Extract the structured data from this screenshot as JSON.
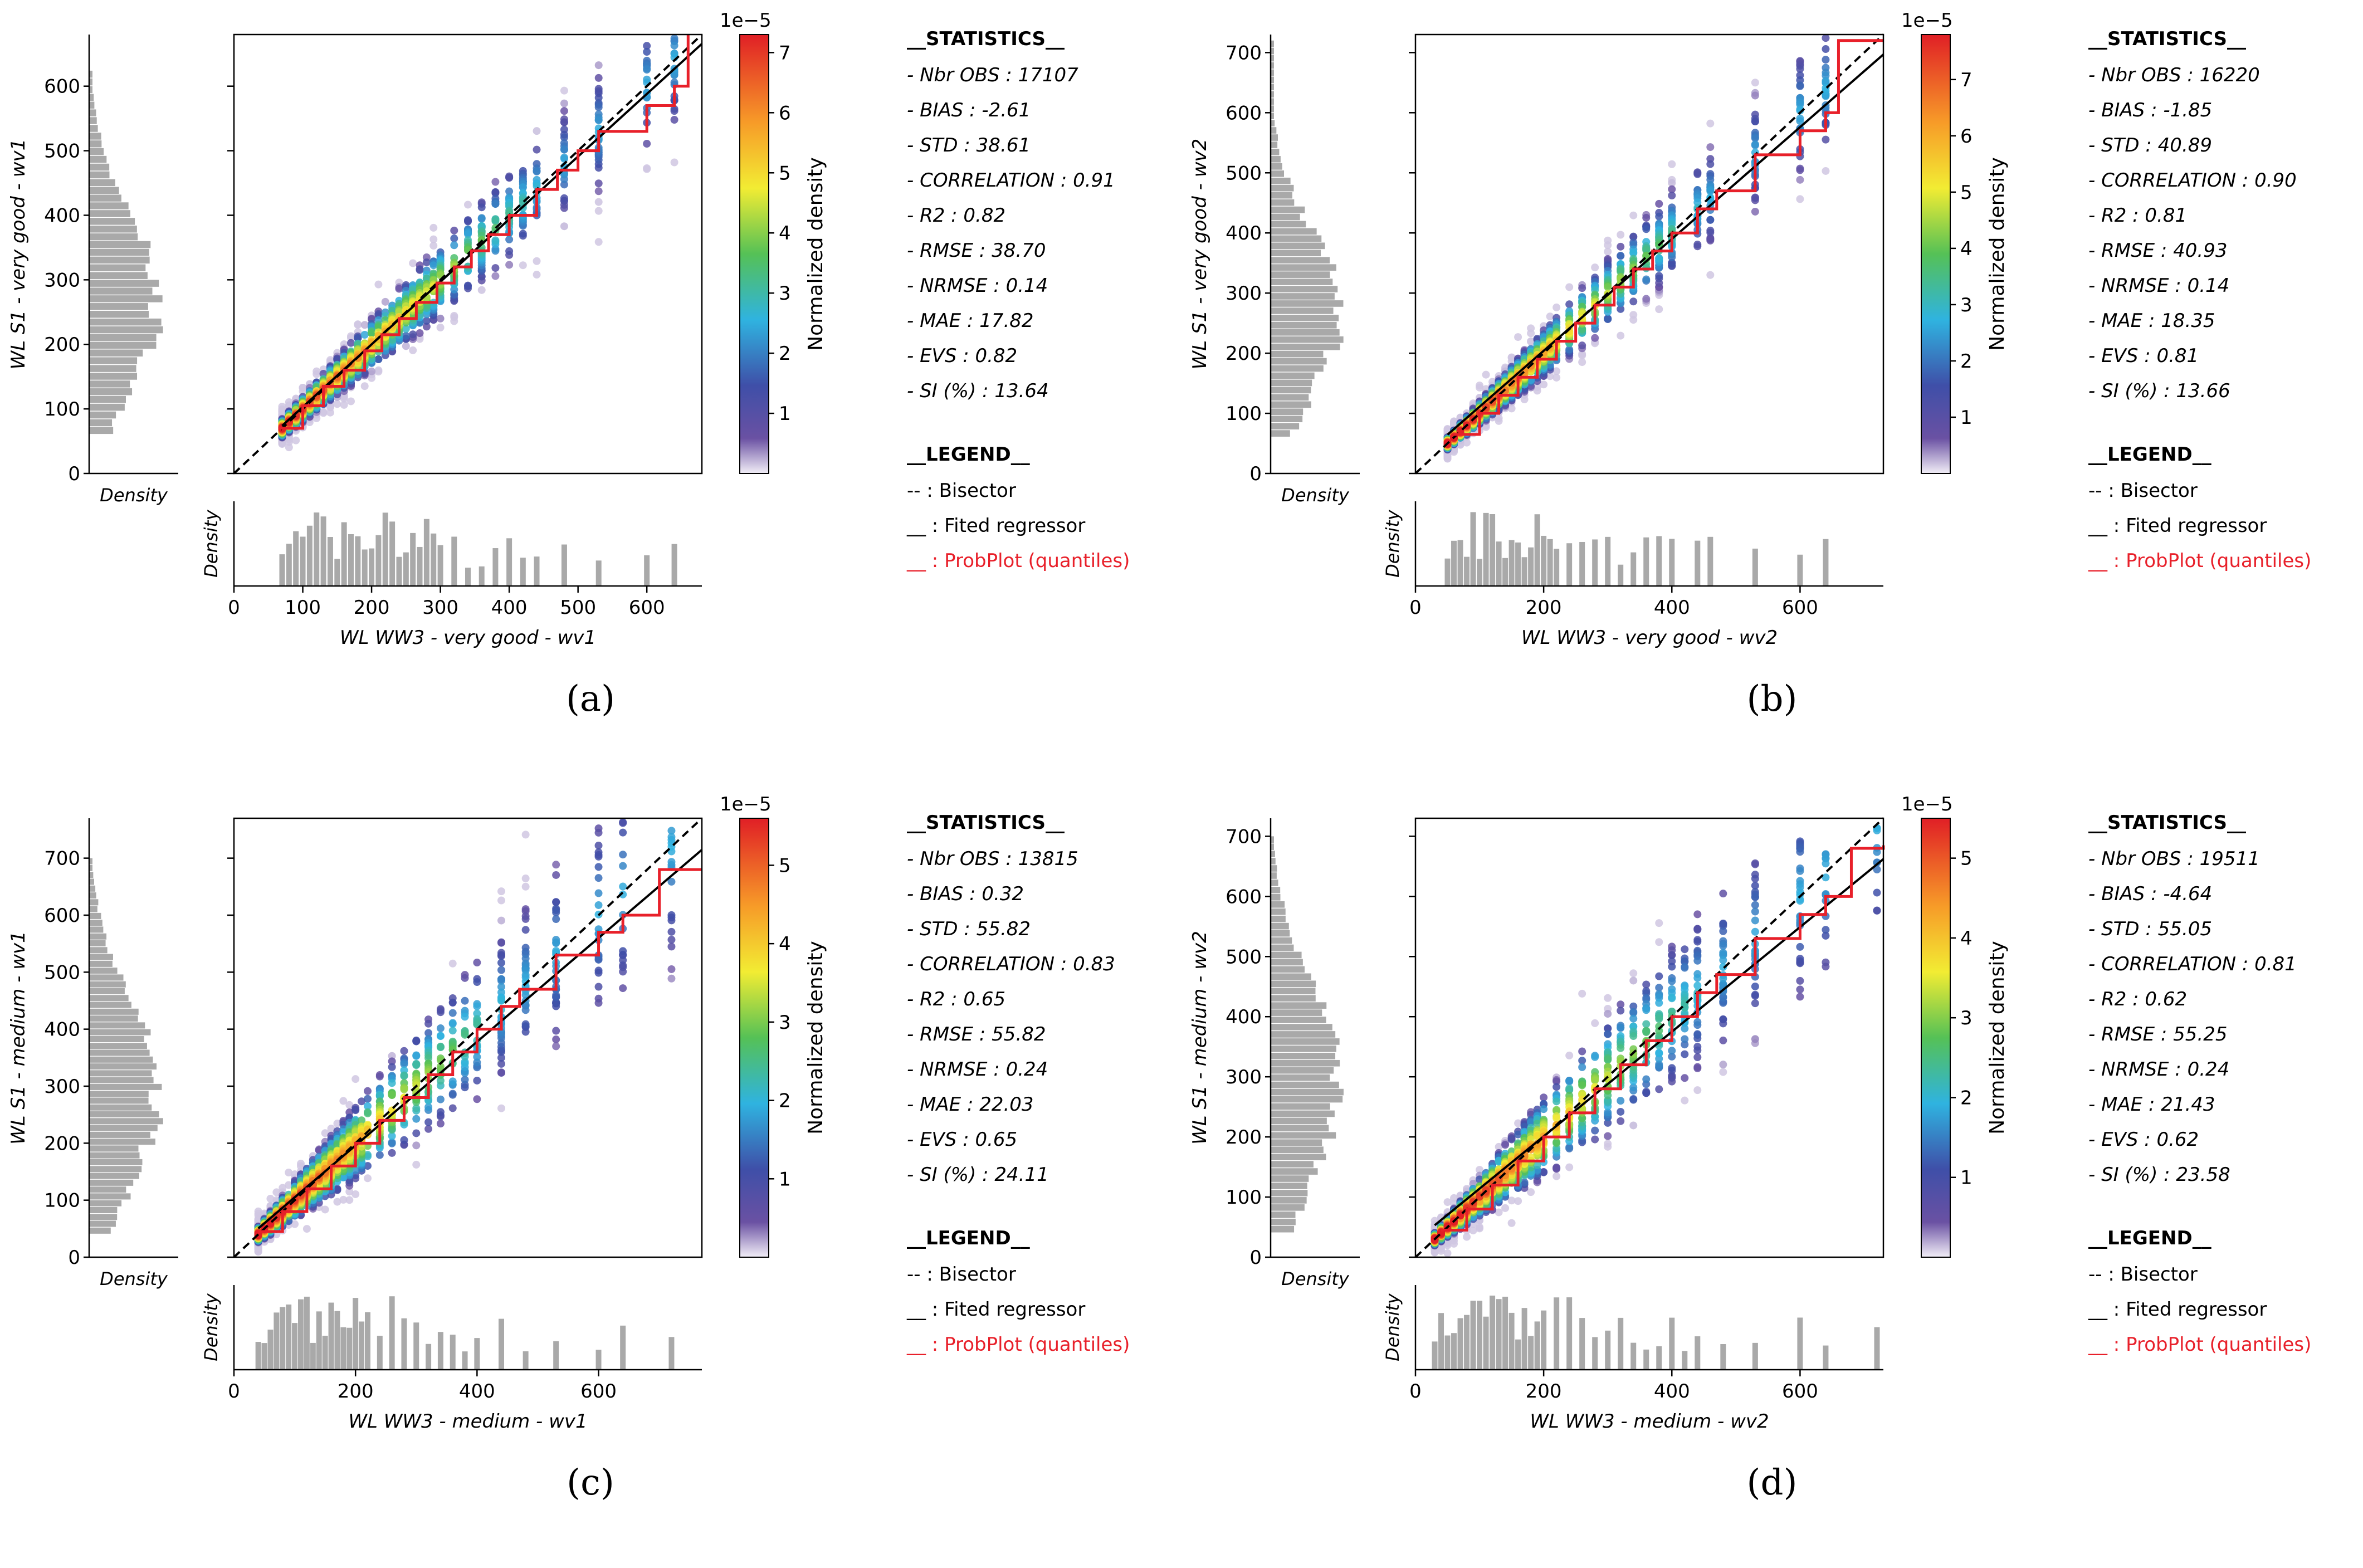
{
  "panels": [
    {
      "label": "(a)",
      "xlabel": "WL WW3 - very good - wv1",
      "ylabel": "WL S1 - very good - wv1",
      "colorbar_label": "Normalized density",
      "colorbar_exponent": "1e−5",
      "stats_title": "__STATISTICS__",
      "stats": [
        "- Nbr OBS : 17107",
        "- BIAS : -2.61",
        "- STD  : 38.61",
        "- CORRELATION : 0.91",
        "- R2 : 0.82",
        "- RMSE  : 38.70",
        "- NRMSE : 0.14",
        "- MAE : 17.82",
        "- EVS : 0.82",
        "- SI (%) : 13.64"
      ],
      "legend_title": "__LEGEND__",
      "legend": [
        "-- : Bisector",
        "__ : Fited regressor",
        "__ : ProbPlot (quantiles)"
      ],
      "density_label": "Density"
    },
    {
      "label": "(b)",
      "xlabel": "WL WW3 - very good - wv2",
      "ylabel": "WL S1 - very good - wv2",
      "colorbar_label": "Normalized density",
      "colorbar_exponent": "1e−5",
      "stats_title": "__STATISTICS__",
      "stats": [
        "- Nbr OBS : 16220",
        "- BIAS : -1.85",
        "- STD  : 40.89",
        "- CORRELATION : 0.90",
        "- R2 : 0.81",
        "- RMSE  : 40.93",
        "- NRMSE : 0.14",
        "- MAE : 18.35",
        "- EVS : 0.81",
        "- SI (%) : 13.66"
      ],
      "legend_title": "__LEGEND__",
      "legend": [
        "-- : Bisector",
        "__ : Fited regressor",
        "__ : ProbPlot (quantiles)"
      ],
      "density_label": "Density"
    },
    {
      "label": "(c)",
      "xlabel": "WL WW3 - medium - wv1",
      "ylabel": "WL S1 - medium - wv1",
      "colorbar_label": "Normalized density",
      "colorbar_exponent": "1e−5",
      "stats_title": "__STATISTICS__",
      "stats": [
        "- Nbr OBS : 13815",
        "- BIAS : 0.32",
        "- STD  : 55.82",
        "- CORRELATION : 0.83",
        "- R2 : 0.65",
        "- RMSE  : 55.82",
        "- NRMSE : 0.24",
        "- MAE : 22.03",
        "- EVS : 0.65",
        "- SI (%) : 24.11"
      ],
      "legend_title": "__LEGEND__",
      "legend": [
        "-- : Bisector",
        "__ : Fited regressor",
        "__ : ProbPlot (quantiles)"
      ],
      "density_label": "Density"
    },
    {
      "label": "(d)",
      "xlabel": "WL WW3 - medium - wv2",
      "ylabel": "WL S1 - medium - wv2",
      "colorbar_label": "Normalized density",
      "colorbar_exponent": "1e−5",
      "stats_title": "__STATISTICS__",
      "stats": [
        "- Nbr OBS : 19511",
        "- BIAS : -4.64",
        "- STD  : 55.05",
        "- CORRELATION : 0.81",
        "- R2 : 0.62",
        "- RMSE  : 55.25",
        "- NRMSE : 0.24",
        "- MAE : 21.43",
        "- EVS : 0.62",
        "- SI (%) : 23.58"
      ],
      "legend_title": "__LEGEND__",
      "legend": [
        "-- : Bisector",
        "__ : Fited regressor",
        "__ : ProbPlot (quantiles)"
      ],
      "density_label": "Density"
    }
  ],
  "chart_data": [
    {
      "type": "scatter",
      "title": "(a)",
      "xlabel": "WL WW3 - very good - wv1",
      "ylabel": "WL S1 - very good - wv1",
      "xlim": [
        0,
        680
      ],
      "ylim": [
        0,
        680
      ],
      "xticks": [
        0,
        100,
        200,
        300,
        400,
        500,
        600
      ],
      "yticks": [
        0,
        100,
        200,
        300,
        400,
        500,
        600
      ],
      "colorbar": {
        "label": "Normalized density",
        "exponent": "1e−5",
        "max": 7.3,
        "ticks": [
          1,
          2,
          3,
          4,
          5,
          6,
          7
        ]
      },
      "regression": {
        "slope": 0.97,
        "intercept": 6
      },
      "probplot": [
        [
          65,
          70
        ],
        [
          100,
          105
        ],
        [
          130,
          135
        ],
        [
          160,
          160
        ],
        [
          190,
          190
        ],
        [
          215,
          215
        ],
        [
          240,
          240
        ],
        [
          265,
          265
        ],
        [
          295,
          295
        ],
        [
          320,
          320
        ],
        [
          345,
          345
        ],
        [
          370,
          370
        ],
        [
          400,
          400
        ],
        [
          440,
          440
        ],
        [
          470,
          470
        ],
        [
          500,
          500
        ],
        [
          530,
          530
        ],
        [
          600,
          570
        ],
        [
          640,
          600
        ],
        [
          660,
          680
        ]
      ],
      "xbins": [
        70,
        80,
        90,
        100,
        110,
        120,
        130,
        140,
        150,
        160,
        170,
        180,
        190,
        200,
        210,
        220,
        230,
        240,
        250,
        260,
        270,
        280,
        290,
        300,
        320,
        340,
        360,
        380,
        400,
        420,
        440,
        480,
        530,
        600,
        640
      ],
      "ybins_range": [
        60,
        620
      ]
    },
    {
      "type": "scatter",
      "title": "(b)",
      "xlabel": "WL WW3 - very good - wv2",
      "ylabel": "WL S1 - very good - wv2",
      "xlim": [
        0,
        730
      ],
      "ylim": [
        0,
        730
      ],
      "xticks": [
        0,
        200,
        400,
        600
      ],
      "yticks": [
        0,
        100,
        200,
        300,
        400,
        500,
        600,
        700
      ],
      "colorbar": {
        "label": "Normalized density",
        "exponent": "1e−5",
        "max": 7.8,
        "ticks": [
          1,
          2,
          3,
          4,
          5,
          6,
          7
        ]
      },
      "regression": {
        "slope": 0.93,
        "intercept": 18
      },
      "probplot": [
        [
          60,
          65
        ],
        [
          100,
          100
        ],
        [
          130,
          130
        ],
        [
          160,
          160
        ],
        [
          190,
          190
        ],
        [
          220,
          220
        ],
        [
          250,
          250
        ],
        [
          280,
          280
        ],
        [
          310,
          310
        ],
        [
          340,
          340
        ],
        [
          370,
          370
        ],
        [
          400,
          400
        ],
        [
          440,
          440
        ],
        [
          470,
          470
        ],
        [
          530,
          530
        ],
        [
          600,
          570
        ],
        [
          640,
          600
        ],
        [
          660,
          720
        ],
        [
          730,
          720
        ]
      ],
      "xbins": [
        50,
        60,
        70,
        80,
        90,
        100,
        110,
        120,
        130,
        140,
        150,
        160,
        170,
        180,
        190,
        200,
        210,
        220,
        240,
        260,
        280,
        300,
        320,
        340,
        360,
        380,
        400,
        440,
        460,
        530,
        600,
        640
      ],
      "ybins_range": [
        60,
        720
      ]
    },
    {
      "type": "scatter",
      "title": "(c)",
      "xlabel": "WL WW3 - medium - wv1",
      "ylabel": "WL S1 - medium - wv1",
      "xlim": [
        0,
        770
      ],
      "ylim": [
        0,
        770
      ],
      "xticks": [
        0,
        200,
        400,
        600
      ],
      "yticks": [
        0,
        100,
        200,
        300,
        400,
        500,
        600,
        700
      ],
      "colorbar": {
        "label": "Normalized density",
        "exponent": "1e−5",
        "max": 5.6,
        "ticks": [
          1,
          2,
          3,
          4,
          5
        ]
      },
      "regression": {
        "slope": 0.91,
        "intercept": 14
      },
      "probplot": [
        [
          40,
          45
        ],
        [
          80,
          80
        ],
        [
          120,
          120
        ],
        [
          160,
          160
        ],
        [
          200,
          200
        ],
        [
          240,
          240
        ],
        [
          280,
          280
        ],
        [
          320,
          320
        ],
        [
          360,
          360
        ],
        [
          400,
          400
        ],
        [
          440,
          440
        ],
        [
          470,
          470
        ],
        [
          530,
          530
        ],
        [
          600,
          570
        ],
        [
          640,
          600
        ],
        [
          700,
          680
        ],
        [
          770,
          680
        ]
      ],
      "xbins": [
        40,
        50,
        60,
        70,
        80,
        90,
        100,
        110,
        120,
        130,
        140,
        150,
        160,
        170,
        180,
        190,
        200,
        210,
        220,
        240,
        260,
        280,
        300,
        320,
        340,
        360,
        380,
        400,
        440,
        480,
        530,
        600,
        640,
        720
      ],
      "ybins_range": [
        40,
        690
      ]
    },
    {
      "type": "scatter",
      "title": "(d)",
      "xlabel": "WL WW3 - medium - wv2",
      "ylabel": "WL S1 - medium - wv2",
      "xlim": [
        0,
        730
      ],
      "ylim": [
        0,
        730
      ],
      "xticks": [
        0,
        200,
        400,
        600
      ],
      "yticks": [
        0,
        100,
        200,
        300,
        400,
        500,
        600,
        700
      ],
      "colorbar": {
        "label": "Normalized density",
        "exponent": "1e−5",
        "max": 5.5,
        "ticks": [
          1,
          2,
          3,
          4,
          5
        ]
      },
      "regression": {
        "slope": 0.87,
        "intercept": 27
      },
      "probplot": [
        [
          40,
          45
        ],
        [
          80,
          80
        ],
        [
          120,
          120
        ],
        [
          160,
          160
        ],
        [
          200,
          200
        ],
        [
          240,
          240
        ],
        [
          280,
          280
        ],
        [
          320,
          320
        ],
        [
          360,
          360
        ],
        [
          400,
          400
        ],
        [
          440,
          440
        ],
        [
          470,
          470
        ],
        [
          530,
          530
        ],
        [
          600,
          570
        ],
        [
          640,
          600
        ],
        [
          680,
          680
        ],
        [
          730,
          685
        ]
      ],
      "xbins": [
        30,
        40,
        50,
        60,
        70,
        80,
        90,
        100,
        110,
        120,
        130,
        140,
        150,
        160,
        170,
        180,
        190,
        200,
        220,
        240,
        260,
        280,
        300,
        320,
        340,
        360,
        380,
        400,
        420,
        440,
        480,
        530,
        600,
        640,
        720
      ],
      "ybins_range": [
        40,
        700
      ]
    }
  ]
}
